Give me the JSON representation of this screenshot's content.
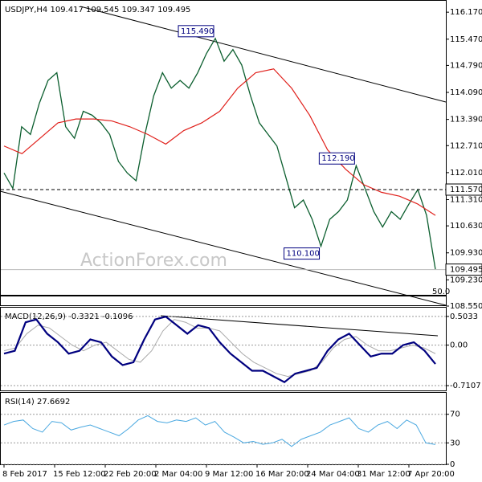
{
  "x_axis_labels": [
    "8 Feb 2017",
    "15 Feb 12:00",
    "22 Feb 20:00",
    "2 Mar 04:00",
    "9 Mar 12:00",
    "16 Mar 20:00",
    "24 Mar 04:00",
    "31 Mar 12:00",
    "7 Apr 20:00"
  ],
  "watermark": "ActionForex.com",
  "chart_data": [
    {
      "type": "line",
      "title": "USDJPY,H4  109.417 109.545 109.347 109.495",
      "series": [
        {
          "color": "#0b5e2e",
          "width": 1.3,
          "values": [
            112.0,
            111.6,
            113.2,
            113.0,
            113.8,
            114.4,
            114.6,
            113.2,
            112.9,
            113.6,
            113.5,
            113.3,
            113.0,
            112.3,
            112.0,
            111.8,
            113.0,
            114.0,
            114.6,
            114.2,
            114.4,
            114.2,
            114.6,
            115.1,
            115.49,
            114.9,
            115.2,
            114.8,
            114.0,
            113.3,
            113.0,
            112.7,
            111.9,
            111.1,
            111.3,
            110.8,
            110.1,
            110.8,
            111.0,
            111.3,
            112.19,
            111.6,
            111.0,
            110.6,
            111.0,
            110.8,
            111.2,
            111.57,
            110.9,
            109.5
          ]
        },
        {
          "color": "#e0201b",
          "width": 1.2,
          "values": [
            112.7,
            112.5,
            112.9,
            113.3,
            113.4,
            113.4,
            113.35,
            113.2,
            113.0,
            112.75,
            113.1,
            113.3,
            113.6,
            114.2,
            114.6,
            114.7,
            114.2,
            113.5,
            112.6,
            112.1,
            111.7,
            111.5,
            111.4,
            111.2,
            110.9
          ]
        }
      ],
      "ylim": [
        108.55,
        116.465
      ],
      "yticks": [
        {
          "value": 116.17,
          "label": "116.170"
        },
        {
          "value": 115.47,
          "label": "115.470"
        },
        {
          "value": 114.79,
          "label": "114.790"
        },
        {
          "value": 114.09,
          "label": "114.090"
        },
        {
          "value": 113.39,
          "label": "113.390"
        },
        {
          "value": 112.71,
          "label": "112.710"
        },
        {
          "value": 112.01,
          "label": "112.010"
        },
        {
          "value": 111.31,
          "label": "111.310"
        },
        {
          "value": 110.63,
          "label": "110.630"
        },
        {
          "value": 109.93,
          "label": "109.930"
        },
        {
          "value": 109.23,
          "label": "109.230"
        },
        {
          "value": 108.55,
          "label": "108.550"
        }
      ],
      "annotations": [
        {
          "value": 115.49,
          "label": "115.490"
        },
        {
          "value": 112.19,
          "label": "112.190"
        },
        {
          "value": 110.1,
          "label": "110.100"
        }
      ],
      "level": {
        "value": 111.57,
        "label": "111.570"
      },
      "last_price": {
        "value": 109.495,
        "label": "109.495"
      },
      "strip_label": "50.0"
    },
    {
      "type": "line",
      "title": "MACD(12,26,9) -0.3321 -0.1096",
      "grid": true,
      "series": [
        {
          "color": "#aaaaaa",
          "width": 1,
          "values": [
            -0.1,
            -0.05,
            0.2,
            0.35,
            0.3,
            0.15,
            0.0,
            -0.1,
            0.0,
            0.05,
            -0.1,
            -0.25,
            -0.3,
            -0.1,
            0.25,
            0.45,
            0.4,
            0.3,
            0.3,
            0.25,
            0.05,
            -0.15,
            -0.3,
            -0.4,
            -0.5,
            -0.55,
            -0.5,
            -0.45,
            -0.3,
            -0.05,
            0.1,
            0.15,
            0.0,
            -0.1,
            -0.1,
            -0.05,
            0.0,
            -0.05,
            -0.15
          ]
        },
        {
          "color": "#00007f",
          "width": 2.2,
          "values": [
            -0.15,
            -0.1,
            0.4,
            0.45,
            0.2,
            0.05,
            -0.15,
            -0.1,
            0.1,
            0.05,
            -0.2,
            -0.35,
            -0.3,
            0.1,
            0.45,
            0.5,
            0.35,
            0.2,
            0.35,
            0.3,
            0.05,
            -0.15,
            -0.3,
            -0.45,
            -0.45,
            -0.55,
            -0.65,
            -0.5,
            -0.45,
            -0.4,
            -0.1,
            0.1,
            0.2,
            0.0,
            -0.2,
            -0.15,
            -0.15,
            0.0,
            0.05,
            -0.1,
            -0.33
          ]
        }
      ],
      "ylim": [
        -0.795,
        0.657
      ],
      "yticks": [
        0.5033,
        {
          "value": 0,
          "label": "0.00"
        },
        -0.7107
      ]
    },
    {
      "type": "line",
      "title": "RSI(14) 27.6692",
      "grid": true,
      "series": [
        {
          "color": "#4aa8e0",
          "width": 1,
          "values": [
            55,
            60,
            62,
            50,
            45,
            60,
            58,
            48,
            52,
            55,
            50,
            45,
            40,
            50,
            62,
            68,
            60,
            58,
            62,
            60,
            65,
            55,
            60,
            45,
            38,
            30,
            32,
            28,
            30,
            35,
            25,
            35,
            40,
            45,
            55,
            60,
            65,
            50,
            45,
            55,
            60,
            50,
            62,
            55,
            30,
            27.7
          ]
        }
      ],
      "ylim": [
        0,
        100
      ],
      "yticks": [
        70,
        30,
        0
      ]
    }
  ]
}
